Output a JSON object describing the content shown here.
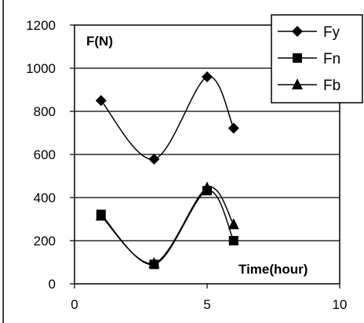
{
  "chart_data": {
    "type": "line",
    "ylabel": "F(N)",
    "xlabel": "Time(hour)",
    "xlim": [
      0,
      10
    ],
    "ylim": [
      0,
      1200
    ],
    "x_ticks": [
      "0",
      "5",
      "10"
    ],
    "y_ticks": [
      "0",
      "200",
      "400",
      "600",
      "800",
      "1000",
      "1200"
    ],
    "grid": "horizontal",
    "legend_position": "top-right",
    "series": [
      {
        "name": "Fy",
        "marker": "diamond",
        "x": [
          1,
          3,
          5,
          6
        ],
        "y": [
          850,
          578,
          960,
          722
        ]
      },
      {
        "name": "Fn",
        "marker": "square",
        "x": [
          1,
          3,
          5,
          6
        ],
        "y": [
          322,
          90,
          432,
          200
        ]
      },
      {
        "name": "Fb",
        "marker": "triangle",
        "x": [
          1,
          3,
          5,
          6
        ],
        "y": [
          315,
          95,
          445,
          275
        ]
      }
    ]
  }
}
